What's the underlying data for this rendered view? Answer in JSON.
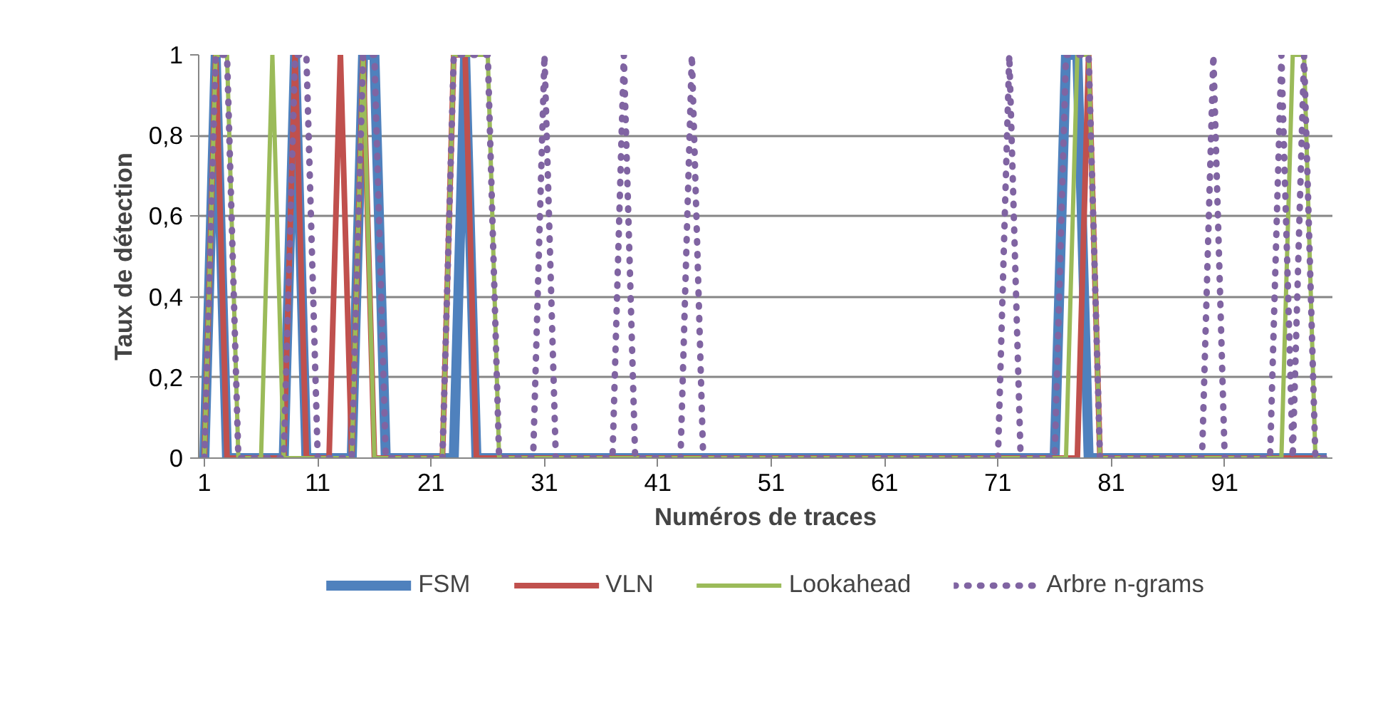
{
  "chart_data": {
    "type": "line",
    "xlabel": "Numéros de traces",
    "ylabel": "Taux de détection",
    "categories": [
      "1",
      null,
      null,
      null,
      null,
      null,
      null,
      null,
      null,
      null,
      "11",
      null,
      null,
      null,
      null,
      null,
      null,
      null,
      null,
      null,
      "21",
      null,
      null,
      null,
      null,
      null,
      null,
      null,
      null,
      null,
      "31",
      null,
      null,
      null,
      null,
      null,
      null,
      null,
      null,
      null,
      "41",
      null,
      null,
      null,
      null,
      null,
      null,
      null,
      null,
      null,
      "51",
      null,
      null,
      null,
      null,
      null,
      null,
      null,
      null,
      null,
      "61",
      null,
      null,
      null,
      null,
      null,
      null,
      null,
      null,
      null,
      "71",
      null,
      null,
      null,
      null,
      null,
      null,
      null,
      null,
      null,
      "81",
      null,
      null,
      null,
      null,
      null,
      null,
      null,
      null,
      null,
      "91",
      null,
      null,
      null,
      null,
      null,
      null,
      null,
      null,
      null
    ],
    "ylim": [
      0,
      1
    ],
    "yticks": [
      0,
      {
        "value": 0.2,
        "label": "0,2"
      },
      {
        "value": 0.4,
        "label": "0,4"
      },
      {
        "value": 0.6,
        "label": "0,6"
      },
      {
        "value": 0.8,
        "label": "0,8"
      },
      1
    ],
    "grid": "y",
    "legend": "bottom",
    "marker": "none",
    "series": [
      {
        "name": "FSM",
        "color": "#4f81bd",
        "line_style": "solid",
        "values": [
          0,
          1,
          0,
          0,
          0,
          0,
          0,
          0,
          1,
          0,
          0,
          0,
          0,
          0,
          1,
          1,
          0,
          0,
          0,
          0,
          0,
          0,
          0,
          1,
          0,
          0,
          0,
          0,
          0,
          0,
          0,
          0,
          0,
          0,
          0,
          0,
          0,
          0,
          0,
          0,
          0,
          0,
          0,
          0,
          0,
          0,
          0,
          0,
          0,
          0,
          0,
          0,
          0,
          0,
          0,
          0,
          0,
          0,
          0,
          0,
          0,
          0,
          0,
          0,
          0,
          0,
          0,
          0,
          0,
          0,
          0,
          0,
          0,
          0,
          0,
          0,
          1,
          1,
          0,
          0,
          0,
          0,
          0,
          0,
          0,
          0,
          0,
          0,
          0,
          0,
          0,
          0,
          0,
          0,
          0,
          0,
          0,
          0,
          0,
          0
        ]
      },
      {
        "name": "VLN",
        "color": "#c0504d",
        "line_style": "solid",
        "values": [
          0,
          1,
          0,
          0,
          0,
          0,
          0,
          0,
          1,
          0,
          0,
          0,
          1,
          0,
          1,
          0,
          0,
          0,
          0,
          0,
          0,
          0,
          1,
          1,
          0,
          0,
          0,
          0,
          0,
          0,
          0,
          0,
          0,
          0,
          0,
          0,
          0,
          0,
          0,
          0,
          0,
          0,
          0,
          0,
          0,
          0,
          0,
          0,
          0,
          0,
          0,
          0,
          0,
          0,
          0,
          0,
          0,
          0,
          0,
          0,
          0,
          0,
          0,
          0,
          0,
          0,
          0,
          0,
          0,
          0,
          0,
          0,
          0,
          0,
          0,
          0,
          0,
          0,
          1,
          0,
          0,
          0,
          0,
          0,
          0,
          0,
          0,
          0,
          0,
          0,
          0,
          0,
          0,
          0,
          0,
          0,
          0,
          0,
          0,
          0
        ]
      },
      {
        "name": "Lookahead",
        "color": "#9bbb59",
        "line_style": "solid",
        "values": [
          0,
          1,
          1,
          0,
          0,
          0,
          1,
          0,
          0,
          0,
          0,
          0,
          0,
          0,
          1,
          0,
          0,
          0,
          0,
          0,
          0,
          0,
          1,
          1,
          1,
          1,
          0,
          0,
          0,
          0,
          0,
          0,
          0,
          0,
          0,
          0,
          0,
          0,
          0,
          0,
          0,
          0,
          0,
          0,
          0,
          0,
          0,
          0,
          0,
          0,
          0,
          0,
          0,
          0,
          0,
          0,
          0,
          0,
          0,
          0,
          0,
          0,
          0,
          0,
          0,
          0,
          0,
          0,
          0,
          0,
          0,
          0,
          0,
          0,
          0,
          0,
          0,
          1,
          1,
          0,
          0,
          0,
          0,
          0,
          0,
          0,
          0,
          0,
          0,
          0,
          0,
          0,
          0,
          0,
          0,
          0,
          1,
          1,
          0,
          0
        ]
      },
      {
        "name": "Arbre n-grams",
        "color": "#8064a2",
        "line_style": "dotted",
        "values": [
          0,
          1,
          1,
          0,
          0,
          0,
          0,
          0,
          1,
          1,
          0,
          0,
          0,
          0,
          1,
          1,
          0,
          0,
          0,
          0,
          0,
          0,
          1,
          1,
          1,
          1,
          0,
          0,
          0,
          0,
          1,
          0,
          0,
          0,
          0,
          0,
          0,
          1,
          0,
          0,
          0,
          0,
          0,
          1,
          0,
          0,
          0,
          0,
          0,
          0,
          0,
          0,
          0,
          0,
          0,
          0,
          0,
          0,
          0,
          0,
          0,
          0,
          0,
          0,
          0,
          0,
          0,
          0,
          0,
          0,
          0,
          1,
          0,
          0,
          0,
          0,
          1,
          1,
          1,
          0,
          0,
          0,
          0,
          0,
          0,
          0,
          0,
          0,
          0,
          1,
          0,
          0,
          0,
          0,
          0,
          1,
          0,
          1,
          0,
          0
        ]
      }
    ]
  }
}
